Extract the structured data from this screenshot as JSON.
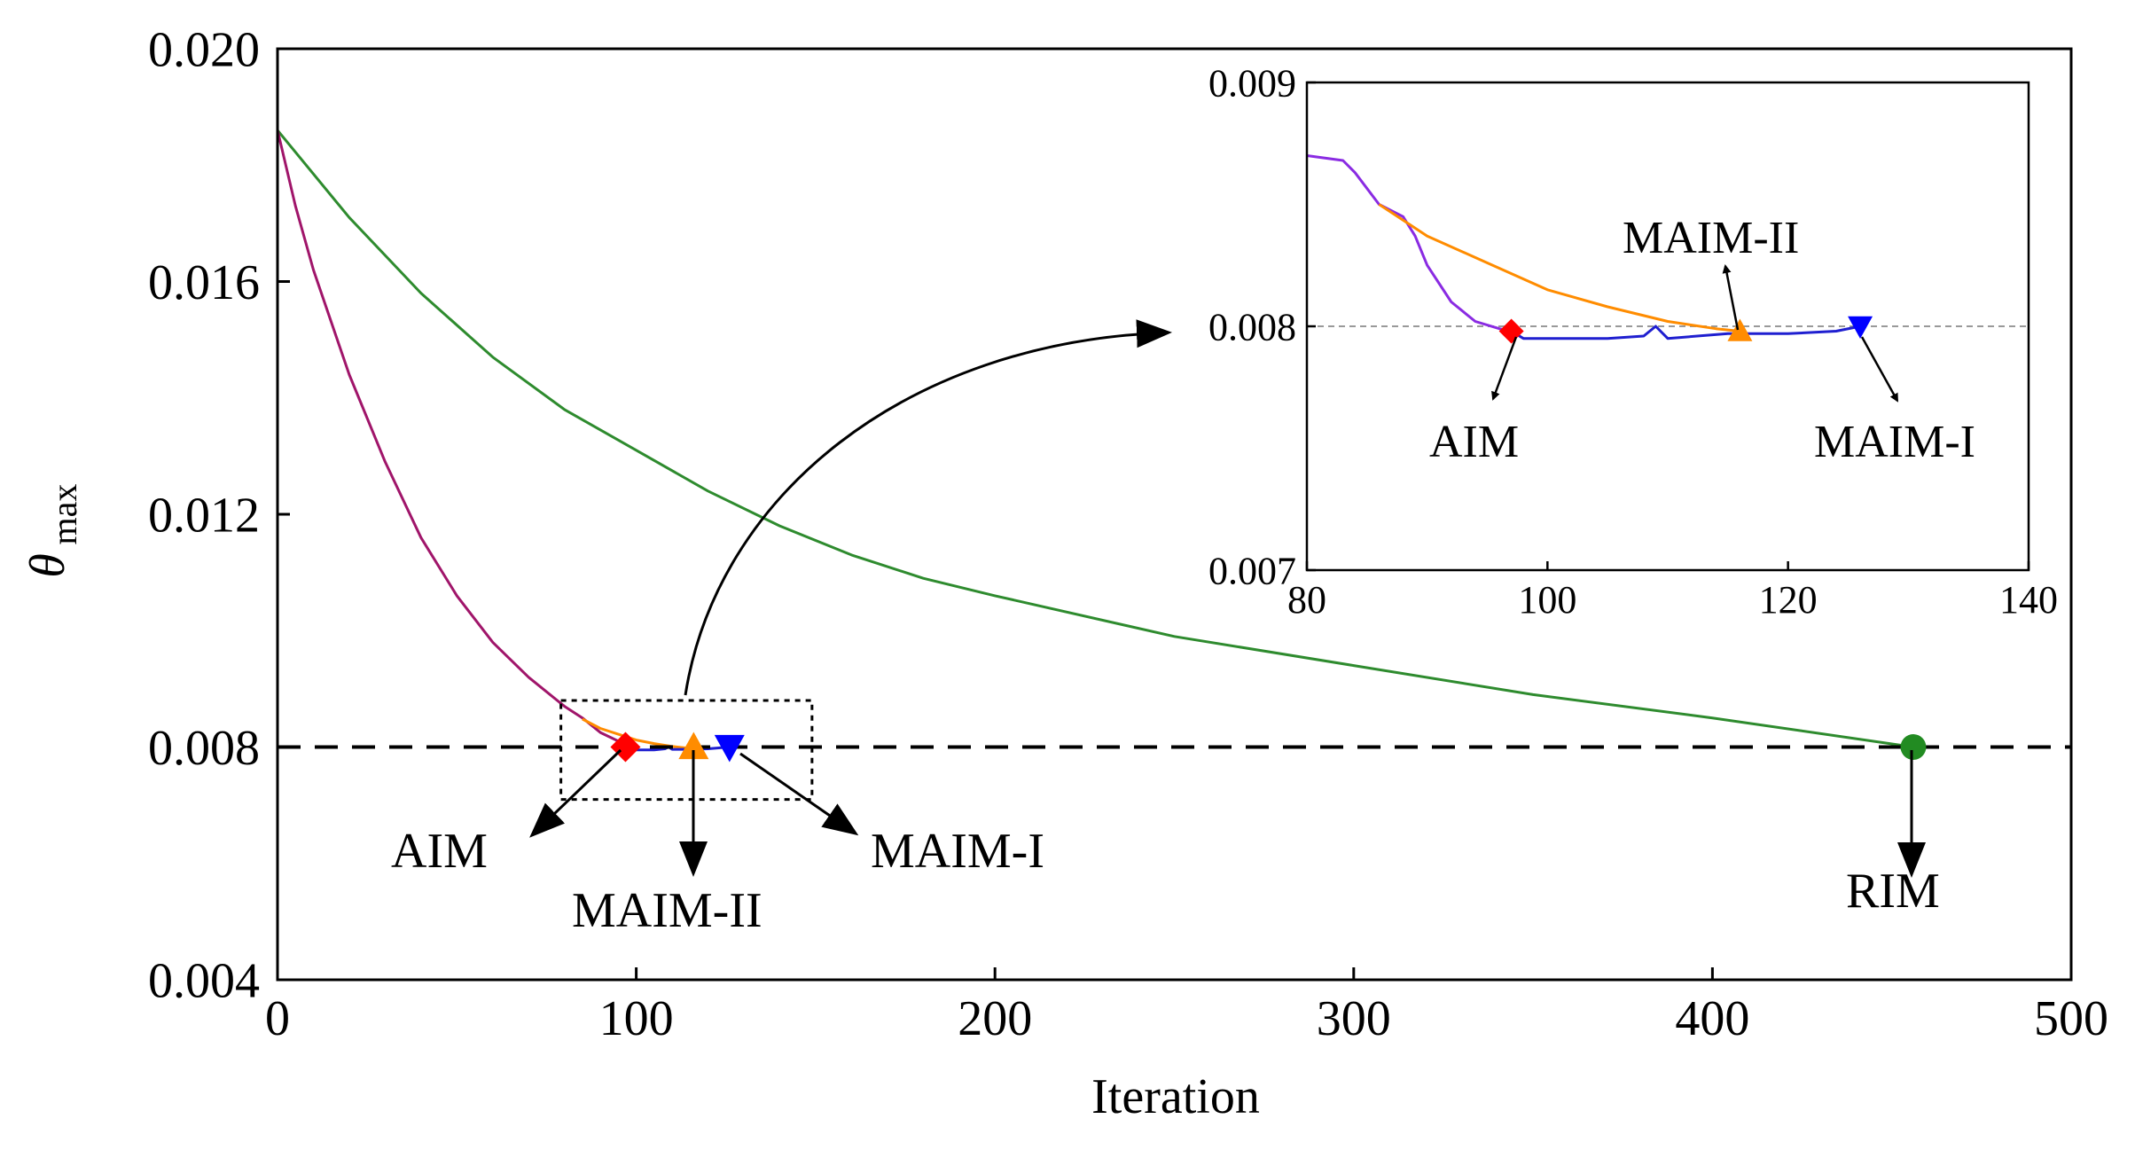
{
  "colors": {
    "aim": "#ff0000",
    "maim1": "#0000ff",
    "maim2": "#ff8c00",
    "rim": "#228b22",
    "green_curve": "#2e8b2e",
    "magenta_curve": "#a0156a",
    "purple_curve": "#8a2be2",
    "orange_curve": "#ff8c00",
    "blue_curve": "#1f1fd0",
    "axis": "#000000",
    "threshold_inset": "#999999"
  },
  "chart_data": [
    {
      "id": "main",
      "type": "line",
      "title": "",
      "xlabel": "Iteration",
      "ylabel_symbol": "θ",
      "ylabel_subscript": "max",
      "xlim": [
        0,
        500
      ],
      "ylim": [
        0.004,
        0.02
      ],
      "xticks": [
        0,
        100,
        200,
        300,
        400,
        500
      ],
      "xtick_labels": [
        "0",
        "100",
        "200",
        "300",
        "400",
        "500"
      ],
      "yticks": [
        0.004,
        0.008,
        0.012,
        0.016,
        0.02
      ],
      "ytick_labels": [
        "0.004",
        "0.008",
        "0.012",
        "0.016",
        "0.020"
      ],
      "threshold": 0.008,
      "series": [
        {
          "name": "RIM",
          "color": "#2e8b2e",
          "x": [
            0,
            20,
            40,
            60,
            80,
            100,
            120,
            140,
            160,
            180,
            200,
            250,
            300,
            350,
            400,
            456
          ],
          "y": [
            0.0186,
            0.0171,
            0.0158,
            0.0147,
            0.0138,
            0.0131,
            0.0124,
            0.0118,
            0.0113,
            0.0109,
            0.0106,
            0.0099,
            0.0094,
            0.0089,
            0.0085,
            0.008
          ]
        },
        {
          "name": "AIM",
          "color": "#a0156a",
          "x": [
            0,
            5,
            10,
            20,
            30,
            40,
            50,
            60,
            70,
            80,
            85,
            90,
            95,
            97
          ],
          "y": [
            0.0186,
            0.0173,
            0.0162,
            0.0144,
            0.0129,
            0.0116,
            0.0106,
            0.0098,
            0.0092,
            0.0087,
            0.0085,
            0.00825,
            0.0081,
            0.00798
          ]
        },
        {
          "name": "MAIM-II",
          "color": "#ff8c00",
          "x": [
            85,
            90,
            95,
            100,
            105,
            110,
            116
          ],
          "y": [
            0.00848,
            0.00832,
            0.00822,
            0.00812,
            0.00806,
            0.00801,
            0.00797
          ]
        },
        {
          "name": "MAIM-I",
          "color": "#1f1fd0",
          "x": [
            97,
            100,
            105,
            108,
            109,
            110,
            115,
            120,
            126
          ],
          "y": [
            0.00797,
            0.00795,
            0.00795,
            0.00797,
            0.008,
            0.00796,
            0.00796,
            0.00797,
            0.008
          ]
        }
      ],
      "markers": [
        {
          "name": "AIM",
          "x": 97,
          "y": 0.008,
          "shape": "diamond",
          "color": "#ff0000"
        },
        {
          "name": "MAIM-II",
          "x": 116,
          "y": 0.008,
          "shape": "triangle-up",
          "color": "#ff8c00"
        },
        {
          "name": "MAIM-I",
          "x": 126,
          "y": 0.008,
          "shape": "triangle-down",
          "color": "#0000ff"
        },
        {
          "name": "RIM",
          "x": 456,
          "y": 0.008,
          "shape": "circle",
          "color": "#228b22"
        }
      ],
      "annotations": [
        {
          "label": "AIM",
          "x": 97,
          "y": 0.008
        },
        {
          "label": "MAIM-II",
          "x": 116,
          "y": 0.008
        },
        {
          "label": "MAIM-I",
          "x": 126,
          "y": 0.008
        },
        {
          "label": "RIM",
          "x": 456,
          "y": 0.008
        }
      ],
      "zoom_box": {
        "xlim": [
          79,
          149
        ],
        "ylim": [
          0.0071,
          0.0088
        ]
      }
    },
    {
      "id": "inset",
      "type": "line",
      "title": "",
      "xlim": [
        80,
        140
      ],
      "ylim": [
        0.007,
        0.009
      ],
      "xticks": [
        80,
        100,
        120,
        140
      ],
      "xtick_labels": [
        "80",
        "100",
        "120",
        "140"
      ],
      "yticks": [
        0.007,
        0.008,
        0.009
      ],
      "ytick_labels": [
        "0.007",
        "0.008",
        "0.009"
      ],
      "threshold": 0.008,
      "series": [
        {
          "name": "AIM",
          "color": "#8a2be2",
          "x": [
            80,
            83,
            84,
            86,
            88,
            89,
            90,
            92,
            94,
            96,
            97
          ],
          "y": [
            0.0087,
            0.00868,
            0.00863,
            0.0085,
            0.00845,
            0.00837,
            0.00825,
            0.0081,
            0.00802,
            0.00799,
            0.00798
          ]
        },
        {
          "name": "MAIM-II",
          "color": "#ff8c00",
          "x": [
            86,
            90,
            95,
            100,
            105,
            110,
            114,
            116
          ],
          "y": [
            0.0085,
            0.00837,
            0.00826,
            0.00815,
            0.00808,
            0.00802,
            0.00799,
            0.00798
          ]
        },
        {
          "name": "MAIM-I",
          "color": "#1f1fd0",
          "x": [
            97,
            98,
            100,
            105,
            108,
            109,
            110,
            115,
            120,
            124,
            126
          ],
          "y": [
            0.00798,
            0.00795,
            0.00795,
            0.00795,
            0.00796,
            0.008,
            0.00795,
            0.00797,
            0.00797,
            0.00798,
            0.008
          ]
        }
      ],
      "markers": [
        {
          "name": "AIM",
          "x": 97,
          "y": 0.00798,
          "shape": "diamond",
          "color": "#ff0000"
        },
        {
          "name": "MAIM-II",
          "x": 116,
          "y": 0.00798,
          "shape": "triangle-up",
          "color": "#ff8c00"
        },
        {
          "name": "MAIM-I",
          "x": 126,
          "y": 0.008,
          "shape": "triangle-down",
          "color": "#0000ff"
        }
      ],
      "annotations": [
        {
          "label": "MAIM-II",
          "x": 116,
          "y": 0.00798
        },
        {
          "label": "AIM",
          "x": 97,
          "y": 0.00798
        },
        {
          "label": "MAIM-I",
          "x": 126,
          "y": 0.008
        }
      ]
    }
  ]
}
